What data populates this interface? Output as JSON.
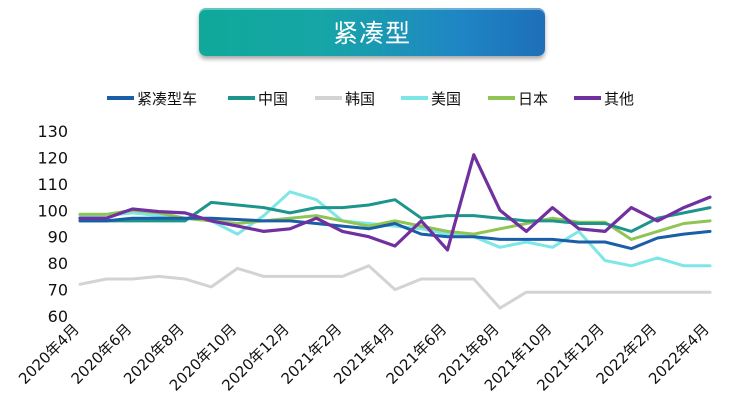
{
  "title": "紧凑型",
  "chart_data": {
    "type": "line",
    "title": "紧凑型",
    "xlabel": "",
    "ylabel": "",
    "ylim": [
      60,
      130
    ],
    "yticks": [
      60,
      70,
      80,
      90,
      100,
      110,
      120,
      130
    ],
    "grid": false,
    "legend_position": "top",
    "x": [
      "2020年4月",
      "2020年5月",
      "2020年6月",
      "2020年7月",
      "2020年8月",
      "2020年9月",
      "2020年10月",
      "2020年11月",
      "2020年12月",
      "2021年1月",
      "2021年2月",
      "2021年3月",
      "2021年4月",
      "2021年5月",
      "2021年6月",
      "2021年7月",
      "2021年8月",
      "2021年9月",
      "2021年10月",
      "2021年11月",
      "2021年12月",
      "2022年1月",
      "2022年2月",
      "2022年3月",
      "2022年4月"
    ],
    "xtick_labels": [
      "2020年4月",
      "2020年6月",
      "2020年8月",
      "2020年10月",
      "2020年12月",
      "2021年2月",
      "2021年4月",
      "2021年6月",
      "2021年8月",
      "2021年10月",
      "2021年12月",
      "2022年2月",
      "2022年4月"
    ],
    "series": [
      {
        "name": "紧凑型车",
        "color": "#1a5ea8",
        "values": [
          96,
          96,
          97,
          97,
          97,
          97,
          96.5,
          96,
          96,
          95,
          94,
          93,
          95,
          91,
          90,
          90,
          89,
          89,
          89,
          88,
          88,
          85.5,
          89.5,
          91,
          92
        ]
      },
      {
        "name": "中国",
        "color": "#1e958c",
        "values": [
          96,
          96,
          96,
          96,
          96,
          103,
          102,
          101,
          99,
          101,
          101,
          102,
          104,
          97,
          98,
          98,
          97,
          96,
          96,
          95,
          95,
          92,
          97,
          99,
          101
        ]
      },
      {
        "name": "韩国",
        "color": "#d3d3d3",
        "values": [
          72,
          74,
          74,
          75,
          74,
          71,
          78,
          75,
          75,
          75,
          75,
          79,
          70,
          74,
          74,
          74,
          63,
          69,
          69,
          69,
          69,
          69,
          69,
          69,
          69
        ]
      },
      {
        "name": "美国",
        "color": "#7ee6e6",
        "values": [
          98,
          98,
          99,
          98,
          97,
          96,
          91,
          98,
          107,
          104,
          96,
          95,
          94,
          93,
          91,
          90,
          86,
          88,
          86,
          92,
          81,
          79,
          82,
          79,
          79
        ]
      },
      {
        "name": "日本",
        "color": "#90c454",
        "values": [
          98.5,
          98.5,
          100,
          99,
          97,
          96,
          95,
          96,
          97,
          98,
          96,
          94,
          96,
          94,
          92,
          91,
          93,
          95,
          97,
          95.5,
          95.5,
          89,
          92,
          95,
          96
        ]
      },
      {
        "name": "其他",
        "color": "#7030a0",
        "values": [
          97,
          97,
          100.5,
          99.5,
          99,
          96,
          94,
          92,
          93,
          97,
          92,
          90,
          86.5,
          96,
          85,
          121,
          100,
          92,
          101,
          93,
          92,
          101,
          96,
          101,
          105
        ]
      }
    ]
  }
}
